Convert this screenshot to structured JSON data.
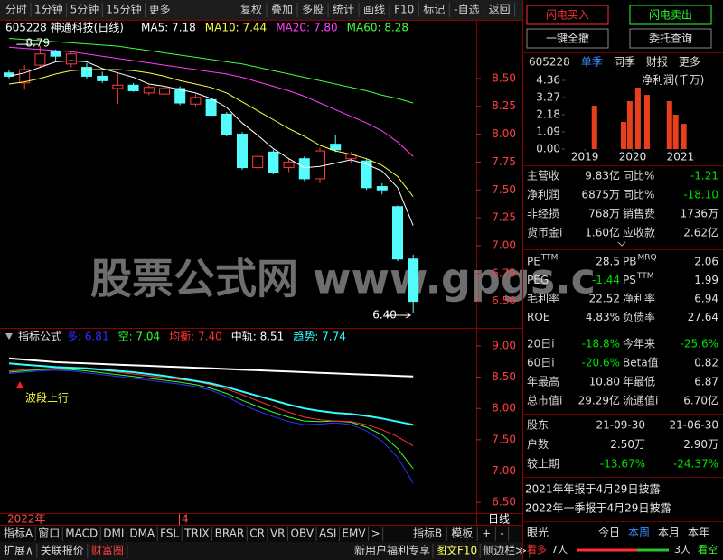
{
  "toolbar": {
    "left": [
      "分时",
      "1分钟",
      "5分钟",
      "15分钟",
      "更多"
    ],
    "right": [
      "复权",
      "叠加",
      "多股",
      "统计",
      "画线",
      "F10",
      "标记",
      "-自选",
      "返回"
    ]
  },
  "watermark": "股票公式网 www.gpgs.c",
  "chart_data": [
    {
      "type": "candlestick",
      "title": "605228 神通科技(日线)",
      "open": [
        8.55,
        8.46,
        8.62,
        8.74,
        8.63,
        8.6,
        8.52,
        8.41,
        8.44,
        8.37,
        8.36,
        8.41,
        8.27,
        8.31,
        8.18,
        8.0,
        7.7,
        7.84,
        7.7,
        7.78,
        7.6,
        7.91,
        7.78,
        7.76,
        7.53,
        7.35,
        6.88
      ],
      "high": [
        8.58,
        8.62,
        8.79,
        8.76,
        8.74,
        8.64,
        8.56,
        8.55,
        8.46,
        8.44,
        8.43,
        8.43,
        8.36,
        8.33,
        8.2,
        8.02,
        7.82,
        7.86,
        7.78,
        7.8,
        7.88,
        7.99,
        7.84,
        7.78,
        7.56,
        7.36,
        6.92
      ],
      "low": [
        8.5,
        8.4,
        8.6,
        8.66,
        8.6,
        8.5,
        8.46,
        8.27,
        8.38,
        8.35,
        8.35,
        8.26,
        8.25,
        8.15,
        7.98,
        7.68,
        7.68,
        7.64,
        7.66,
        7.58,
        7.56,
        7.84,
        7.74,
        7.5,
        7.46,
        6.86,
        6.4
      ],
      "close": [
        8.52,
        8.58,
        8.72,
        8.7,
        8.72,
        8.52,
        8.48,
        8.44,
        8.39,
        8.42,
        8.41,
        8.28,
        8.33,
        8.17,
        8.0,
        7.7,
        7.8,
        7.66,
        7.75,
        7.6,
        7.85,
        7.86,
        7.82,
        7.52,
        7.5,
        6.88,
        6.5
      ],
      "up_color": "#ff3c3c",
      "down_color": "#54fcfc",
      "series": [
        {
          "name": "MA5: 7.18",
          "color": "#ffffff",
          "values": [
            8.52,
            8.55,
            8.6,
            8.65,
            8.66,
            8.65,
            8.59,
            8.55,
            8.51,
            8.45,
            8.43,
            8.4,
            8.37,
            8.32,
            8.24,
            8.1,
            7.99,
            7.87,
            7.78,
            7.7,
            7.71,
            7.74,
            7.77,
            7.73,
            7.67,
            7.52,
            7.18
          ]
        },
        {
          "name": "MA10: 7.44",
          "color": "#ffff40",
          "values": [
            8.45,
            8.47,
            8.5,
            8.54,
            8.57,
            8.58,
            8.58,
            8.58,
            8.57,
            8.55,
            8.52,
            8.48,
            8.45,
            8.42,
            8.37,
            8.29,
            8.21,
            8.13,
            8.05,
            7.98,
            7.9,
            7.85,
            7.82,
            7.78,
            7.72,
            7.62,
            7.44
          ]
        },
        {
          "name": "MA20: 7.80",
          "color": "#ff40ff",
          "values": [
            8.78,
            8.77,
            8.76,
            8.75,
            8.74,
            8.72,
            8.7,
            8.68,
            8.66,
            8.64,
            8.62,
            8.6,
            8.58,
            8.56,
            8.54,
            8.51,
            8.47,
            8.43,
            8.39,
            8.34,
            8.28,
            8.22,
            8.16,
            8.1,
            8.03,
            7.93,
            7.8
          ]
        },
        {
          "name": "MA60: 8.28",
          "color": "#40ff40",
          "values": [
            8.86,
            8.85,
            8.84,
            8.83,
            8.82,
            8.81,
            8.8,
            8.79,
            8.77,
            8.75,
            8.73,
            8.71,
            8.69,
            8.67,
            8.65,
            8.63,
            8.6,
            8.57,
            8.54,
            8.51,
            8.48,
            8.45,
            8.42,
            8.39,
            8.35,
            8.32,
            8.28
          ]
        }
      ],
      "ylim": [
        6.27,
        8.88
      ],
      "yticks": [
        {
          "value": 8.5,
          "label": "8.50"
        },
        8.25,
        {
          "value": 8.0,
          "label": "8.00"
        },
        7.75,
        {
          "value": 7.5,
          "label": "7.50"
        },
        7.25,
        {
          "value": 7.0,
          "label": "7.00"
        },
        6.75,
        {
          "value": 6.5,
          "label": "6.50"
        }
      ],
      "annotations": [
        "8.79",
        "6.40"
      ]
    },
    {
      "type": "line",
      "title": "指标公式",
      "series": [
        {
          "name": "多: 6.81",
          "color": "#3030ff",
          "values": [
            8.56,
            8.58,
            8.6,
            8.61,
            8.6,
            8.57,
            8.54,
            8.51,
            8.48,
            8.45,
            8.42,
            8.39,
            8.35,
            8.29,
            8.19,
            8.06,
            7.96,
            7.87,
            7.79,
            7.74,
            7.75,
            7.77,
            7.74,
            7.64,
            7.48,
            7.22,
            6.81
          ]
        },
        {
          "name": "空: 7.04",
          "color": "#30ff30",
          "values": [
            8.58,
            8.6,
            8.62,
            8.63,
            8.62,
            8.6,
            8.57,
            8.54,
            8.51,
            8.48,
            8.45,
            8.42,
            8.38,
            8.32,
            8.24,
            8.13,
            8.03,
            7.94,
            7.86,
            7.8,
            7.79,
            7.8,
            7.78,
            7.7,
            7.58,
            7.36,
            7.04
          ]
        },
        {
          "name": "均衡: 7.40",
          "color": "#ff3030",
          "values": [
            8.6,
            8.62,
            8.63,
            8.64,
            8.64,
            8.63,
            8.61,
            8.58,
            8.55,
            8.52,
            8.49,
            8.46,
            8.43,
            8.38,
            8.31,
            8.22,
            8.12,
            8.03,
            7.94,
            7.86,
            7.82,
            7.8,
            7.79,
            7.74,
            7.66,
            7.55,
            7.4
          ]
        },
        {
          "name": "中轨: 8.51",
          "color": "#ffffff",
          "values": [
            8.8,
            8.78,
            8.76,
            8.74,
            8.73,
            8.72,
            8.71,
            8.7,
            8.69,
            8.68,
            8.67,
            8.66,
            8.65,
            8.64,
            8.63,
            8.62,
            8.61,
            8.6,
            8.59,
            8.58,
            8.57,
            8.56,
            8.55,
            8.54,
            8.53,
            8.52,
            8.51
          ]
        },
        {
          "name": "趋势: 7.74",
          "color": "#30ffff",
          "values": [
            8.72,
            8.7,
            8.68,
            8.66,
            8.65,
            8.64,
            8.62,
            8.6,
            8.58,
            8.55,
            8.52,
            8.48,
            8.44,
            8.4,
            8.34,
            8.27,
            8.2,
            8.13,
            8.06,
            8.0,
            7.96,
            7.93,
            7.91,
            7.88,
            7.84,
            7.79,
            7.74
          ]
        }
      ],
      "ylim": [
        6.33,
        9.07
      ],
      "yticks": [
        {
          "value": 9.0,
          "label": "9.00"
        },
        {
          "value": 8.5,
          "label": "8.50"
        },
        {
          "value": 8.0,
          "label": "8.00"
        },
        {
          "value": 7.5,
          "label": "7.50"
        },
        {
          "value": 7.0,
          "label": "7.00"
        },
        {
          "value": 6.5,
          "label": "6.50"
        }
      ],
      "annotations": [
        "波段上行"
      ]
    },
    {
      "type": "bar",
      "title": "净利润(千万)",
      "x": [
        2019.2,
        2019.81,
        2019.94,
        2020.11,
        2020.3,
        2020.77,
        2020.9,
        2021.07
      ],
      "values": [
        2.75,
        1.72,
        3.04,
        3.9,
        3.44,
        3.04,
        2.18,
        1.6
      ],
      "color": "#e8401c",
      "xlim": [
        2018.6,
        2021.36
      ],
      "xticks": [
        2019,
        2020,
        2021
      ],
      "ylim": [
        0,
        4.36
      ],
      "yticks": [
        4.36,
        3.27,
        2.18,
        1.09,
        {
          "value": 0,
          "label": "0.00"
        }
      ]
    }
  ],
  "time_axis": {
    "labels": [
      "2022年",
      "4"
    ],
    "period": "日线"
  },
  "tabs": {
    "left": [
      "指标A",
      "窗口",
      "MACD",
      "DMI",
      "DMA",
      "FSL",
      "TRIX",
      "BRAR",
      "CR",
      "VR",
      "OBV",
      "ASI",
      "EMV",
      ">"
    ],
    "right": [
      "指标B",
      "模板",
      "+",
      "-"
    ]
  },
  "status_bar": {
    "left": [
      "扩展∧",
      "关联报价",
      "财富圈"
    ],
    "right": [
      "新用户福利专享",
      "图文F10",
      "侧边栏≫"
    ]
  },
  "side_panel": {
    "buttons": [
      "闪电买入",
      "闪电卖出",
      "一键全撤",
      "委托查询"
    ],
    "header": [
      "605228",
      "单季",
      "同季",
      "财报",
      "更多"
    ],
    "finance": [
      [
        "主营收",
        "9.83亿",
        "同比%",
        "-1.21"
      ],
      [
        "净利润",
        "6875万",
        "同比%",
        "-18.10"
      ],
      [
        "非经损",
        "768万",
        "销售费",
        "1736万"
      ],
      [
        "货币金i",
        "1.60亿",
        "应收款",
        "2.62亿"
      ]
    ],
    "valuation": [
      {
        "label": "PE",
        "sup": "TTM",
        "value": "28.5",
        "label2": "PB",
        "sup2": "MRQ",
        "value2": "2.06"
      },
      {
        "label": "PEG",
        "value": "-1.44",
        "label2": "PS",
        "sup2": "TTM",
        "value2": "1.99"
      },
      {
        "label": "毛利率",
        "value": "22.52",
        "label2": "净利率",
        "value2": "6.94"
      },
      {
        "label": "ROE",
        "value": "4.83%",
        "label2": "负债率",
        "value2": "27.64"
      }
    ],
    "returns": [
      [
        "20日i",
        "-18.8%",
        "今年来",
        "-25.6%"
      ],
      [
        "60日i",
        "-20.6%",
        "Beta值",
        "0.82"
      ],
      [
        "年最高",
        "10.80",
        "年最低",
        "6.87"
      ],
      [
        "总市值i",
        "29.29亿",
        "流通值i",
        "6.70亿"
      ]
    ],
    "holders": [
      [
        "股东",
        "21-09-30",
        "21-06-30"
      ],
      [
        "户数",
        "2.50万",
        "2.90万"
      ],
      [
        "较上期",
        "-13.67%",
        "-24.37%"
      ]
    ],
    "notes": [
      "2021年年报于4月29日披露",
      "2022年一季报于4月29日披露"
    ],
    "sentiment": {
      "title": "眼光",
      "periods": [
        "今日",
        "本周",
        "本月",
        "本年"
      ],
      "bull": "看多",
      "bull_count": "7人",
      "bear_count": "3人",
      "bear": "看空"
    }
  }
}
